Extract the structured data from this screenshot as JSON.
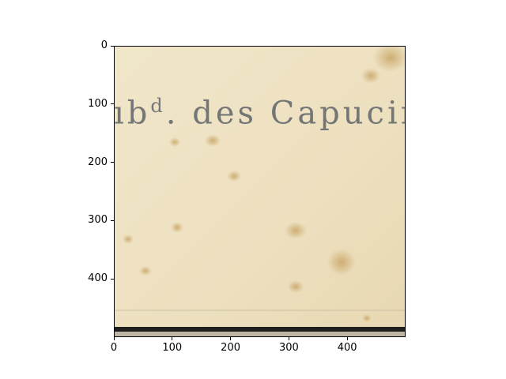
{
  "figure": {
    "image_text": "ıb",
    "image_text_sup": "d",
    "image_text_rest": ". des Capucine",
    "colors": {
      "paper": "#eee2c3",
      "stain": "#c8a566",
      "ink": "#5a5f66",
      "bottom_band": "#1f1f1f"
    }
  },
  "axes": {
    "y_ticks": [
      {
        "value": 0,
        "label": "0"
      },
      {
        "value": 100,
        "label": "100"
      },
      {
        "value": 200,
        "label": "200"
      },
      {
        "value": 300,
        "label": "300"
      },
      {
        "value": 400,
        "label": "400"
      }
    ],
    "x_ticks": [
      {
        "value": 0,
        "label": "0"
      },
      {
        "value": 100,
        "label": "100"
      },
      {
        "value": 200,
        "label": "200"
      },
      {
        "value": 300,
        "label": "300"
      },
      {
        "value": 400,
        "label": "400"
      }
    ],
    "xlim": [
      0,
      500
    ],
    "ylim": [
      500,
      0
    ]
  }
}
